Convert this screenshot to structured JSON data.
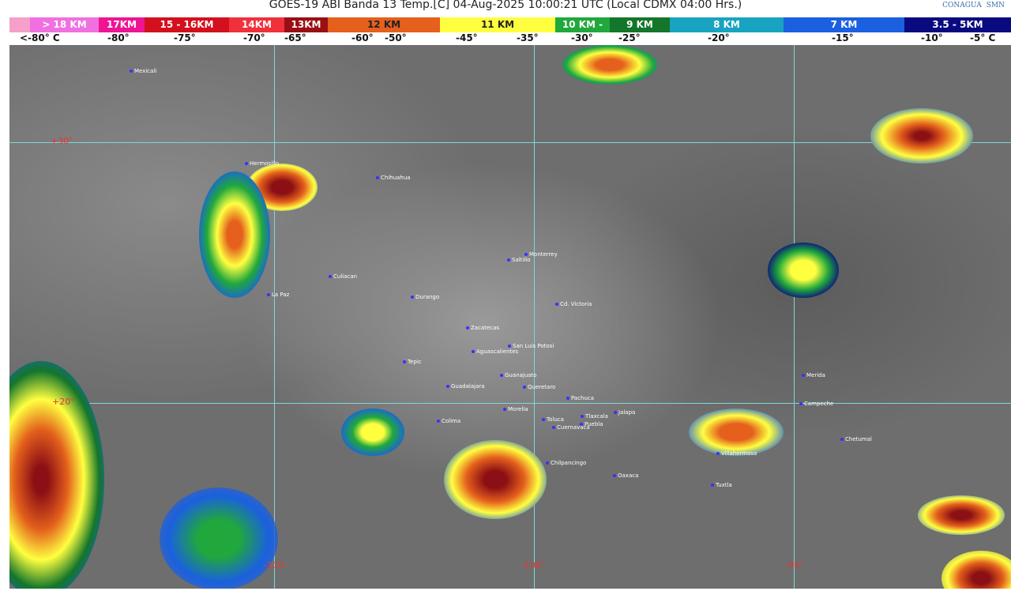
{
  "header": {
    "title": "GOES-19 ABI Banda 13 Temp.[C] 04-Aug-2025 10:00:21 UTC (Local CDMX  04:00 Hrs.)",
    "logos": [
      "CONAGUA",
      "SMN"
    ]
  },
  "legend": {
    "bands": [
      {
        "label": "",
        "color": "#f4a0c8"
      },
      {
        "label": "> 18 KM",
        "color": "#f070e0"
      },
      {
        "label": "17KM",
        "color": "#ee1493"
      },
      {
        "label": "15 - 16KM",
        "color": "#d4101e"
      },
      {
        "label": "14KM",
        "color": "#f0303a"
      },
      {
        "label": "13KM",
        "color": "#9a0f14"
      },
      {
        "label": "12 KM",
        "color": "#e4601c"
      },
      {
        "label": "11 KM",
        "color": "#ffff40"
      },
      {
        "label": "10 KM -",
        "color": "#20a83c"
      },
      {
        "label": "9 KM",
        "color": "#14762a"
      },
      {
        "label": "8 KM",
        "color": "#18a4c0"
      },
      {
        "label": "7 KM",
        "color": "#1a60e0"
      },
      {
        "label": "3.5 - 5KM",
        "color": "#0a0a80"
      }
    ],
    "temps": [
      "<-80° C",
      "-80°",
      "-75°",
      "-70°",
      "-65°",
      "-60°",
      "-50°",
      "-45°",
      "-35°",
      "-30°",
      "-25°",
      "-20°",
      "-15°",
      "-10°",
      "-5° C"
    ]
  },
  "map": {
    "grid_labels": {
      "lat30": "+30°",
      "lat20": "+20°",
      "lon120": "-1",
      "lon110": "-110",
      "lon100": "-100°",
      "lon90": "-90°"
    },
    "cities": [
      "Mexicali",
      "Hermosillo",
      "Chihuahua",
      "Culiacan",
      "La Paz",
      "Durango",
      "Saltillo",
      "Monterrey",
      "Cd. Victoria",
      "Zacatecas",
      "San Luis Potosi",
      "Aguascalientes",
      "Tepic",
      "Guanajuato",
      "Guadalajara",
      "Queretaro",
      "Pachuca",
      "Morelia",
      "Colima",
      "Toluca",
      "Tlaxcala",
      "Puebla",
      "Cuernavaca",
      "Jalapa",
      "Chilpancingo",
      "Oaxaca",
      "Villahermosa",
      "Tuxtla",
      "Campeche",
      "Merida",
      "Chetumal"
    ]
  }
}
